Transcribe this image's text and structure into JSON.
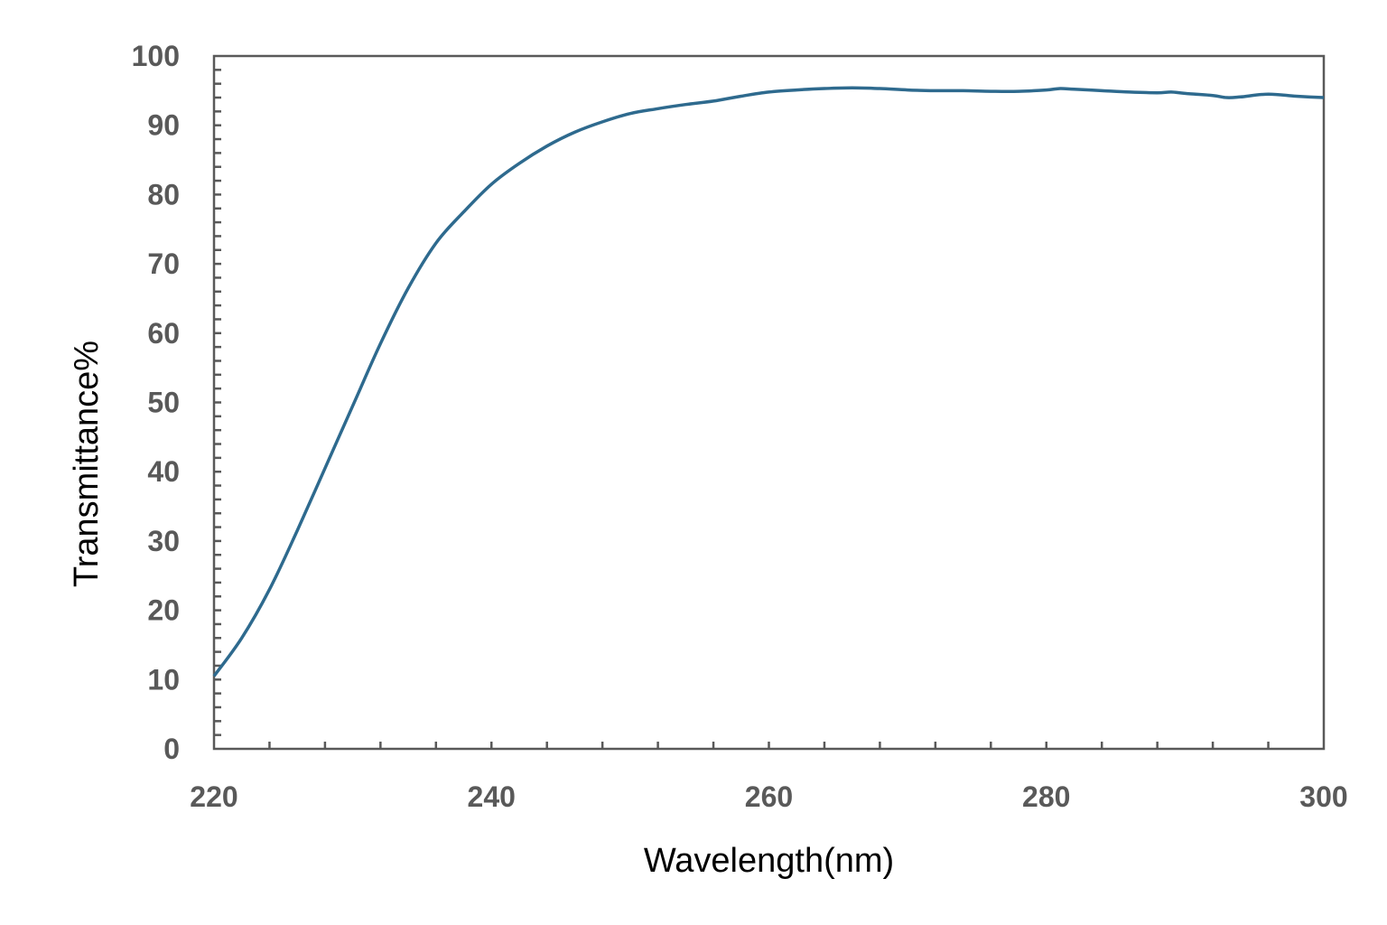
{
  "chart_data": {
    "type": "line",
    "title": "",
    "xlabel": "Wavelength(nm)",
    "ylabel": "Transmittance%",
    "xlim": [
      220,
      300
    ],
    "ylim": [
      0,
      100
    ],
    "xticks": [
      220,
      240,
      260,
      280,
      300
    ],
    "yticks": [
      0,
      10,
      20,
      30,
      40,
      50,
      60,
      70,
      80,
      90,
      100
    ],
    "grid": false,
    "legend": "none",
    "series": [
      {
        "color": "#2e6a8e",
        "x": [
          220,
          222,
          224,
          226,
          228,
          230,
          232,
          234,
          236,
          238,
          240,
          242,
          244,
          246,
          248,
          250,
          252,
          254,
          256,
          258,
          260,
          262,
          264,
          266,
          268,
          270,
          272,
          274,
          276,
          278,
          280,
          281,
          282,
          284,
          286,
          288,
          289,
          290,
          292,
          293,
          294,
          296,
          298,
          300
        ],
        "y": [
          10.5,
          16,
          23,
          31.5,
          40.5,
          49.5,
          58.5,
          66.5,
          73,
          77.5,
          81.5,
          84.5,
          87,
          89,
          90.5,
          91.7,
          92.4,
          93,
          93.5,
          94.2,
          94.8,
          95.1,
          95.3,
          95.4,
          95.3,
          95.1,
          95.0,
          95.0,
          94.9,
          94.9,
          95.1,
          95.3,
          95.2,
          95.0,
          94.8,
          94.7,
          94.8,
          94.6,
          94.3,
          94.0,
          94.1,
          94.5,
          94.2,
          94.0
        ]
      }
    ]
  }
}
